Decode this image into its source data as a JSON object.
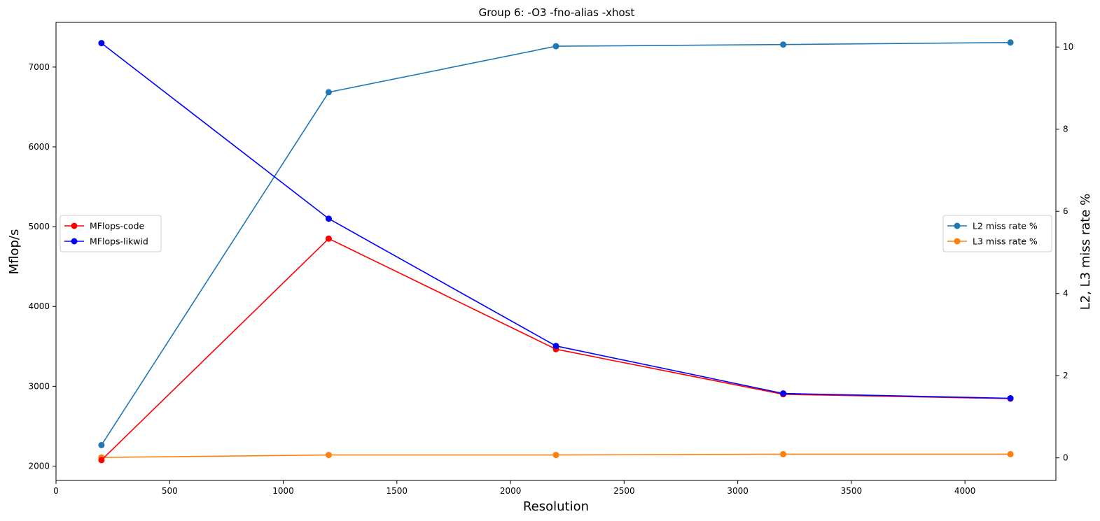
{
  "chart_data": {
    "type": "line",
    "title": "Group 6: -O3 -fno-alias -xhost",
    "xlabel": "Resolution",
    "ylabel_left": "Mflop/s",
    "ylabel_right": "L2, L3 miss rate %",
    "xlim": [
      0,
      4400
    ],
    "ylim_left": [
      1820,
      7560
    ],
    "ylim_right": [
      -0.55,
      10.6
    ],
    "x_ticks": [
      0,
      500,
      1000,
      1500,
      2000,
      2500,
      3000,
      3500,
      4000
    ],
    "y_left_ticks": [
      2000,
      3000,
      4000,
      5000,
      6000,
      7000
    ],
    "y_right_ticks": [
      0,
      2,
      4,
      6,
      8,
      10
    ],
    "grid": false,
    "x": [
      200,
      1200,
      2200,
      3200,
      4200
    ],
    "series_left": [
      {
        "name": "MFlops-code",
        "color": "#ff0000",
        "values": [
          2075,
          4850,
          3465,
          2900,
          2845
        ]
      },
      {
        "name": "MFlops-likwid",
        "color": "#0000ff",
        "values": [
          7300,
          5100,
          3505,
          2910,
          2850
        ]
      }
    ],
    "series_right": [
      {
        "name": "L2 miss rate %",
        "color": "#1f77b4",
        "values": [
          0.31,
          8.9,
          10.02,
          10.06,
          10.11
        ]
      },
      {
        "name": "L3 miss rate %",
        "color": "#ff7f0e",
        "values": [
          0.01,
          0.07,
          0.07,
          0.09,
          0.09
        ]
      }
    ],
    "legend_left_placement": "center-left",
    "legend_right_placement": "center-right"
  }
}
